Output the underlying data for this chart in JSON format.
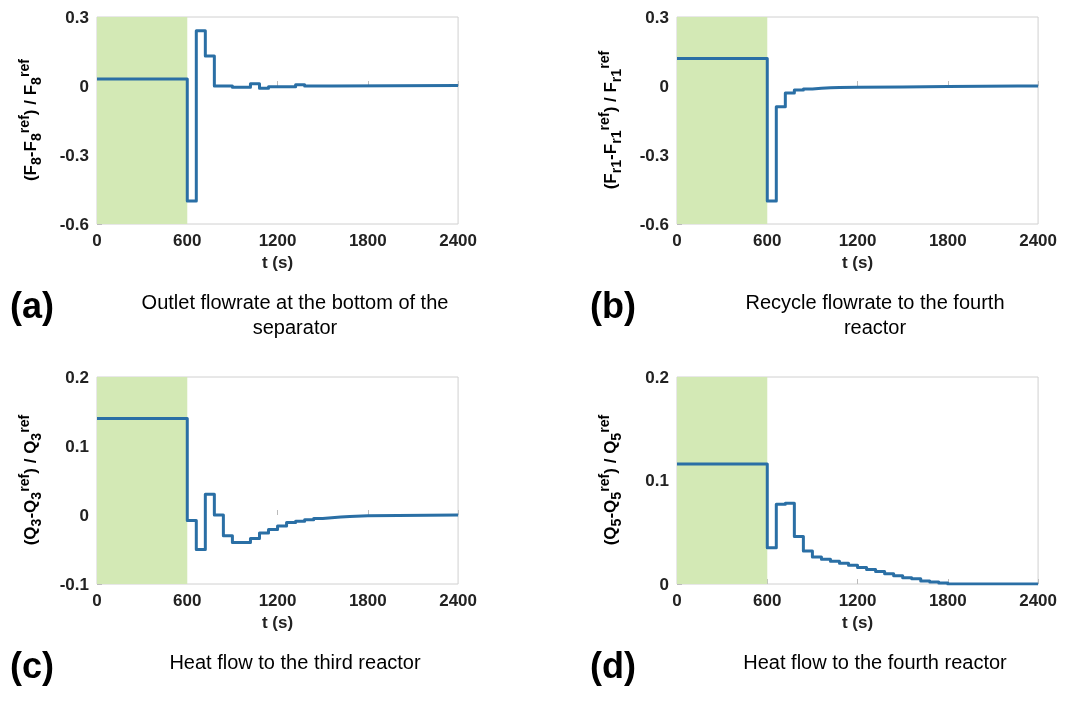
{
  "chart_data": [
    {
      "type": "step",
      "title": "(a)",
      "subtitle": "Outlet flowrate at the bottom of the separator",
      "xlabel": "t (s)",
      "ylabel": "(F$_{8}$-F$_{8}$$^{ref}$) / F$_{8}$$^{ref}$",
      "color": "#2a6fa5",
      "grid": false,
      "x": [
        0,
        600,
        660,
        720,
        780,
        900,
        1020,
        1080,
        1140,
        1320,
        1380,
        1560,
        2400
      ],
      "values": [
        0.03,
        -0.5,
        0.24,
        0.13,
        0,
        -0.005,
        0.01,
        -0.01,
        -0.003,
        0.005,
        0,
        0.002,
        0
      ],
      "xlim": [
        0,
        2400
      ],
      "xticks": [
        0,
        600,
        1200,
        1800,
        2400
      ],
      "ylim": [
        -0.6,
        0.3
      ],
      "yticks": [
        -0.6,
        -0.3,
        0,
        0.3
      ],
      "bands": [
        {
          "axis": "x",
          "from": 0,
          "to": 600,
          "color": "#d3e9b5"
        }
      ]
    },
    {
      "type": "step",
      "title": "(b)",
      "subtitle": "Recycle flowrate to the fourth reactor",
      "xlabel": "t (s)",
      "ylabel": "(F$_{r1}$-F$_{r1}$$^{ref}$) / F$_{r1}$$^{ref}$",
      "color": "#2a6fa5",
      "grid": false,
      "x": [
        0,
        600,
        660,
        720,
        780,
        840,
        900,
        960,
        1020,
        1080,
        1200,
        1500,
        1800,
        2400
      ],
      "values": [
        0.12,
        -0.5,
        -0.09,
        -0.03,
        -0.017,
        -0.013,
        -0.01,
        -0.008,
        -0.006,
        -0.005,
        -0.004,
        -0.002,
        0,
        0
      ],
      "xlim": [
        0,
        2400
      ],
      "xticks": [
        0,
        600,
        1200,
        1800,
        2400
      ],
      "ylim": [
        -0.6,
        0.3
      ],
      "yticks": [
        -0.6,
        -0.3,
        0,
        0.3
      ],
      "bands": [
        {
          "axis": "x",
          "from": 0,
          "to": 600,
          "color": "#d3e9b5"
        }
      ]
    },
    {
      "type": "step",
      "title": "(c)",
      "subtitle": "Heat flow to the third reactor",
      "xlabel": "t (s)",
      "ylabel": "(Q$_{3}$-Q$_{3}$$^{ref}$) / Q$_{3}$$^{ref}$",
      "color": "#2a6fa5",
      "grid": false,
      "x": [
        0,
        600,
        660,
        720,
        780,
        840,
        900,
        1020,
        1080,
        1140,
        1200,
        1260,
        1320,
        1380,
        1440,
        1500,
        1560,
        1620,
        1680,
        1800,
        2400
      ],
      "values": [
        0.14,
        -0.008,
        -0.05,
        0.03,
        0,
        -0.03,
        -0.04,
        -0.034,
        -0.026,
        -0.021,
        -0.016,
        -0.011,
        -0.009,
        -0.007,
        -0.005,
        -0.004,
        -0.003,
        -0.002,
        -0.001,
        0,
        0
      ],
      "xlim": [
        0,
        2400
      ],
      "xticks": [
        0,
        600,
        1200,
        1800,
        2400
      ],
      "ylim": [
        -0.1,
        0.2
      ],
      "yticks": [
        -0.1,
        0,
        0.1,
        0.2
      ],
      "bands": [
        {
          "axis": "x",
          "from": 0,
          "to": 600,
          "color": "#d3e9b5"
        }
      ]
    },
    {
      "type": "step",
      "title": "(d)",
      "subtitle": "Heat flow to the fourth reactor",
      "xlabel": "t (s)",
      "ylabel": "(Q$_{5}$-Q$_{5}$$^{ref}$) / Q$_{5}$$^{ref}$",
      "color": "#2a6fa5",
      "grid": false,
      "x": [
        0,
        600,
        660,
        720,
        780,
        840,
        900,
        960,
        1020,
        1080,
        1140,
        1200,
        1260,
        1320,
        1380,
        1440,
        1500,
        1560,
        1620,
        1680,
        1740,
        1800,
        2400
      ],
      "values": [
        0.116,
        0.035,
        0.077,
        0.078,
        0.046,
        0.032,
        0.026,
        0.024,
        0.022,
        0.02,
        0.018,
        0.016,
        0.014,
        0.012,
        0.01,
        0.008,
        0.006,
        0.005,
        0.003,
        0.002,
        0.001,
        0,
        0
      ],
      "xlim": [
        0,
        2400
      ],
      "xticks": [
        0,
        600,
        1200,
        1800,
        2400
      ],
      "ylim": [
        0,
        0.2
      ],
      "yticks": [
        0,
        0.1,
        0.2
      ],
      "bands": [
        {
          "axis": "x",
          "from": 0,
          "to": 600,
          "color": "#d3e9b5"
        }
      ]
    }
  ]
}
